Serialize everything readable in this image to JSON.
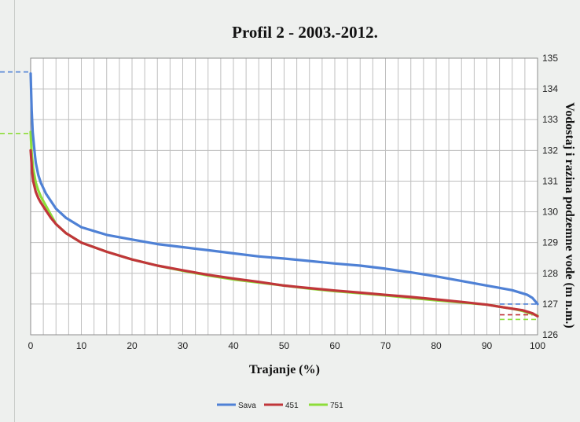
{
  "chart_data": {
    "type": "line",
    "title": "Profil 2 - 2003.-2012.",
    "xlabel": "Trajanje (%)",
    "ylabel": "Vodostaj i razina podzemne vode (m n.m.)",
    "xlim": [
      0,
      100
    ],
    "ylim": [
      126,
      135
    ],
    "xticks": [
      "0",
      "10",
      "20",
      "30",
      "40",
      "50",
      "60",
      "70",
      "80",
      "90",
      "100"
    ],
    "yticks": [
      "126",
      "127",
      "128",
      "129",
      "130",
      "131",
      "132",
      "133",
      "134",
      "135"
    ],
    "x_step_minor": 2.5,
    "grid": true,
    "legend_position": "bottom",
    "series": [
      {
        "name": "Sava",
        "color": "#4f81d5",
        "x": [
          0,
          0.2,
          0.4,
          0.8,
          1,
          1.5,
          2,
          3,
          4,
          5,
          7,
          10,
          15,
          20,
          25,
          30,
          35,
          40,
          45,
          50,
          55,
          60,
          65,
          70,
          75,
          80,
          85,
          90,
          95,
          97,
          98,
          99,
          99.5,
          100
        ],
        "y": [
          134.5,
          133.3,
          132.6,
          131.9,
          131.6,
          131.2,
          130.95,
          130.6,
          130.35,
          130.1,
          129.8,
          129.5,
          129.25,
          129.1,
          128.95,
          128.85,
          128.75,
          128.65,
          128.55,
          128.48,
          128.4,
          128.32,
          128.25,
          128.15,
          128.03,
          127.9,
          127.75,
          127.6,
          127.45,
          127.35,
          127.3,
          127.2,
          127.1,
          127.0
        ]
      },
      {
        "name": "451",
        "color": "#c0363a",
        "x": [
          0,
          0.3,
          0.5,
          1,
          1.5,
          2,
          3,
          4,
          5,
          7,
          10,
          15,
          20,
          25,
          30,
          35,
          40,
          45,
          50,
          55,
          60,
          65,
          70,
          75,
          80,
          85,
          90,
          93,
          95,
          97,
          98,
          99,
          100
        ],
        "y": [
          132.0,
          131.3,
          131.0,
          130.65,
          130.45,
          130.3,
          130.05,
          129.8,
          129.6,
          129.3,
          129.0,
          128.7,
          128.45,
          128.25,
          128.1,
          127.95,
          127.83,
          127.72,
          127.6,
          127.52,
          127.44,
          127.37,
          127.3,
          127.23,
          127.15,
          127.07,
          126.98,
          126.9,
          126.85,
          126.8,
          126.75,
          126.7,
          126.6
        ]
      },
      {
        "name": "751",
        "color": "#8ddd3a",
        "x": [
          0,
          0.2,
          0.5,
          1,
          1.5,
          2,
          3,
          4,
          5,
          7,
          10,
          15,
          20,
          25,
          30,
          35,
          40,
          45,
          50,
          55,
          60,
          65,
          70,
          75,
          80,
          85,
          90,
          93,
          95,
          97,
          98,
          99,
          100
        ],
        "y": [
          132.6,
          131.9,
          131.4,
          130.95,
          130.7,
          130.5,
          130.2,
          129.9,
          129.6,
          129.3,
          129.0,
          128.7,
          128.45,
          128.25,
          128.08,
          127.93,
          127.8,
          127.7,
          127.6,
          127.5,
          127.42,
          127.35,
          127.28,
          127.2,
          127.12,
          127.05,
          126.98,
          126.9,
          126.85,
          126.78,
          126.72,
          126.68,
          126.62
        ]
      }
    ],
    "reference_lines": [
      {
        "color": "#4f81d5",
        "side": "left",
        "y": 134.55
      },
      {
        "color": "#8ddd3a",
        "side": "left",
        "y": 132.55
      },
      {
        "color": "#4f81d5",
        "side": "right",
        "y": 127.0
      },
      {
        "color": "#c0363a",
        "side": "right",
        "y": 126.65
      },
      {
        "color": "#8ddd3a",
        "side": "right",
        "y": 126.5
      }
    ]
  }
}
